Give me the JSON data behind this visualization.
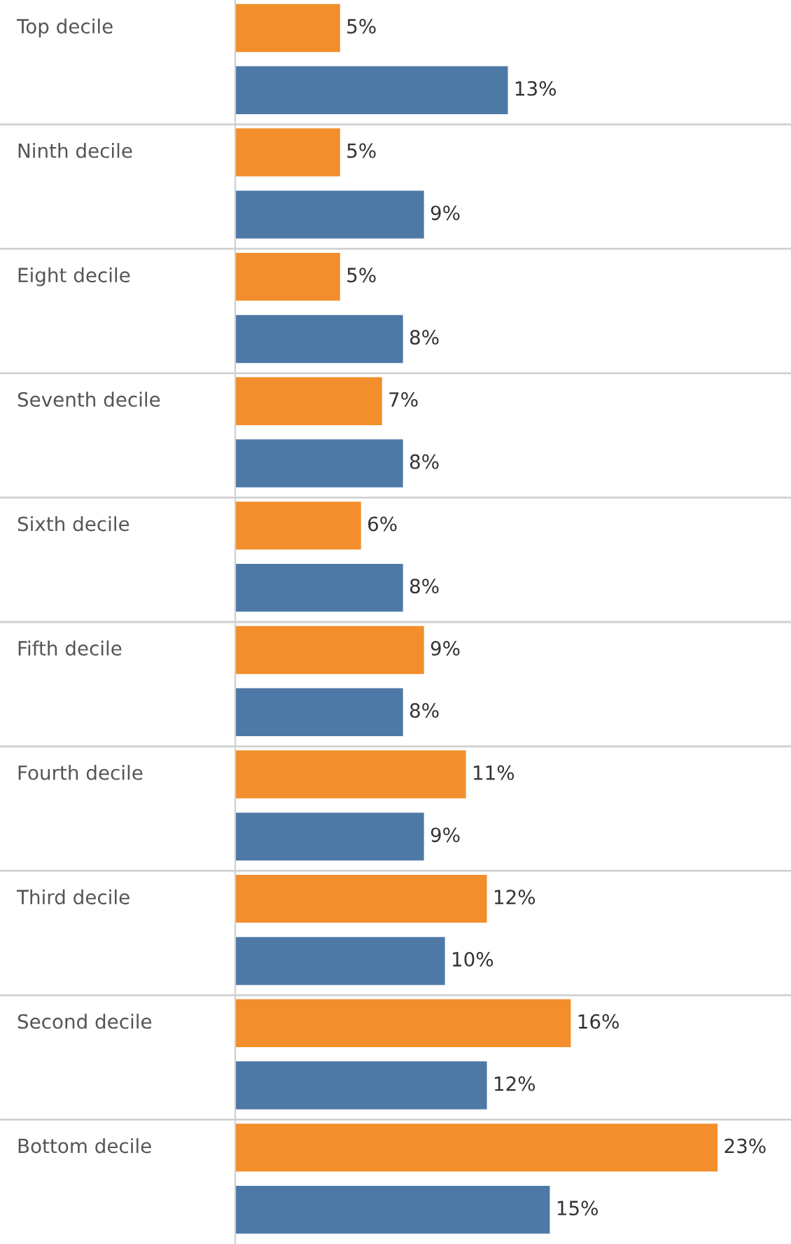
{
  "chart_data": {
    "type": "bar",
    "orientation": "horizontal",
    "categories": [
      "Top decile",
      "Ninth decile",
      "Eight decile",
      "Seventh decile",
      "Sixth decile",
      "Fifth decile",
      "Fourth decile",
      "Third decile",
      "Second decile",
      "Bottom decile"
    ],
    "series": [
      {
        "color": "#f28e2b",
        "values": [
          5,
          5,
          5,
          7,
          6,
          9,
          11,
          12,
          16,
          23
        ],
        "value_labels": [
          "5%",
          "5%",
          "5%",
          "7%",
          "6%",
          "9%",
          "11%",
          "12%",
          "16%",
          "23%"
        ]
      },
      {
        "color": "#4e79a7",
        "values": [
          13,
          9,
          8,
          8,
          8,
          8,
          9,
          10,
          12,
          15
        ],
        "value_labels": [
          "13%",
          "9%",
          "8%",
          "8%",
          "8%",
          "8%",
          "9%",
          "10%",
          "12%",
          "15%"
        ]
      }
    ],
    "xlim": [
      0,
      26.5
    ],
    "grid": false,
    "legend": false
  }
}
